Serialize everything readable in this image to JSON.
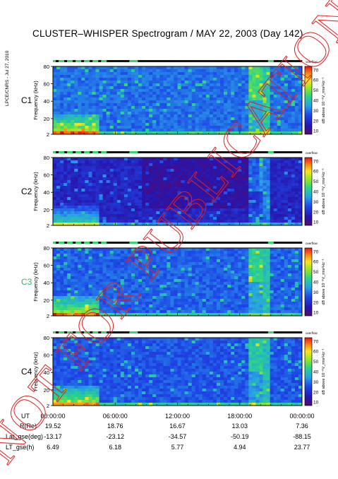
{
  "title": "CLUSTER–WHISPER Spectrogram / MAY 22, 2003 (Day 142)",
  "side_stamp": "LPCE/CNRS - Jul 27, 2010",
  "watermark": "NOT FOR PUBLICATION",
  "chart_data": {
    "type": "heatmap",
    "panels": [
      {
        "name": "C1",
        "label_color": "#000000"
      },
      {
        "name": "C2",
        "label_color": "#000000"
      },
      {
        "name": "C3",
        "label_color": "#2fb86a"
      },
      {
        "name": "C4",
        "label_color": "#000000"
      }
    ],
    "ylabel": "Frequency (kHz)",
    "yticks": [
      80,
      60,
      40,
      20,
      2
    ],
    "ylim": [
      2,
      80
    ],
    "colorbar": {
      "label": "dB above 10⁻⁸V_rms²Hz⁻¹",
      "ticks": [
        70,
        60,
        50,
        40,
        30,
        20,
        10
      ],
      "range": [
        10,
        70
      ],
      "top_label": "overflow"
    },
    "x_ticks": [
      "00:00:00",
      "06:00:00",
      "12:00:00",
      "18:00:00",
      "00:00:00"
    ],
    "ephemeris": [
      {
        "label": "UT",
        "values": [
          "00:00:00",
          "06:00:00",
          "12:00:00",
          "18:00:00",
          "00:00:00"
        ]
      },
      {
        "label": "R(Re)",
        "values": [
          "19.52",
          "18.76",
          "16.67",
          "13.03",
          "7.36"
        ]
      },
      {
        "label": "Lat_gse(deg)",
        "values": [
          "-13.17",
          "-23.12",
          "-34.57",
          "-50.19",
          "-88.15"
        ]
      },
      {
        "label": "LT_gse(h)",
        "values": [
          "6.49",
          "6.18",
          "5.77",
          "4.94",
          "23.77"
        ]
      }
    ]
  }
}
